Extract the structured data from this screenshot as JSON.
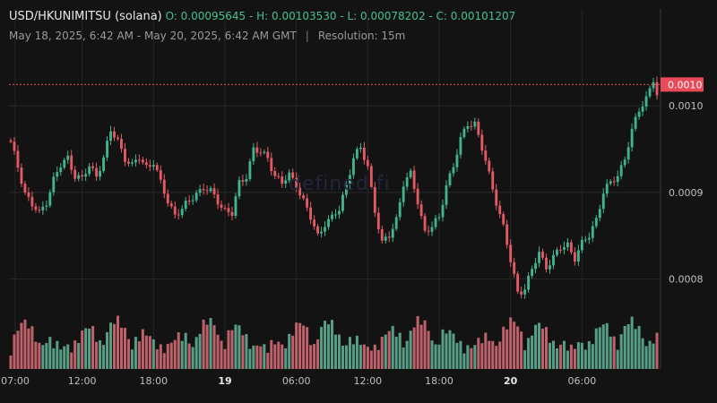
{
  "header": {
    "symbol": "USD/HKUNIMITSU (solana)",
    "ohlc": "O: 0.00095645 - H: 0.00103530 - L: 0.00078202 - C: 0.00101207",
    "range": "May 18, 2025, 6:42 AM - May 20, 2025, 6:42 AM GMT",
    "separator": "|",
    "resolution": "Resolution: 15m"
  },
  "watermark": "defined.fi",
  "colors": {
    "up": "#3fb48f",
    "down": "#e45a64",
    "background": "#131313",
    "price_tag": "#e84a57"
  },
  "chart_data": {
    "type": "candlestick",
    "interval": "15m",
    "ylim": [
      0.00075,
      0.00106
    ],
    "yticks": [
      "0.0008",
      "0.0009",
      "0.0010"
    ],
    "xticks": [
      "07:00",
      "12:00",
      "18:00",
      "19",
      "06:00",
      "12:00",
      "18:00",
      "20",
      "06:00"
    ],
    "current_price_label": "0.0010",
    "current_price": 0.00101207,
    "anchors": [
      [
        0,
        0.00095645
      ],
      [
        2,
        0.00093
      ],
      [
        4,
        0.0009
      ],
      [
        6,
        0.000885
      ],
      [
        8,
        0.000875
      ],
      [
        10,
        0.00089
      ],
      [
        12,
        0.000915
      ],
      [
        14,
        0.00093
      ],
      [
        16,
        0.00094
      ],
      [
        18,
        0.00092
      ],
      [
        20,
        0.000915
      ],
      [
        22,
        0.00093
      ],
      [
        24,
        0.00092
      ],
      [
        26,
        0.00094
      ],
      [
        28,
        0.00097
      ],
      [
        30,
        0.00096
      ],
      [
        32,
        0.00094
      ],
      [
        34,
        0.00093
      ],
      [
        36,
        0.00094
      ],
      [
        38,
        0.00093
      ],
      [
        40,
        0.000935
      ],
      [
        42,
        0.00091
      ],
      [
        44,
        0.00089
      ],
      [
        46,
        0.000875
      ],
      [
        48,
        0.00088
      ],
      [
        50,
        0.00089
      ],
      [
        52,
        0.0009
      ],
      [
        54,
        0.000905
      ],
      [
        56,
        0.0009
      ],
      [
        58,
        0.00089
      ],
      [
        60,
        0.00088
      ],
      [
        62,
        0.000875
      ],
      [
        64,
        0.00091
      ],
      [
        66,
        0.00092
      ],
      [
        68,
        0.00095
      ],
      [
        70,
        0.000945
      ],
      [
        72,
        0.00094
      ],
      [
        74,
        0.00092
      ],
      [
        76,
        0.00091
      ],
      [
        78,
        0.00092
      ],
      [
        80,
        0.00091
      ],
      [
        82,
        0.00089
      ],
      [
        84,
        0.00087
      ],
      [
        86,
        0.00085
      ],
      [
        88,
        0.000865
      ],
      [
        90,
        0.00087
      ],
      [
        92,
        0.00088
      ],
      [
        94,
        0.00091
      ],
      [
        96,
        0.00094
      ],
      [
        98,
        0.00095
      ],
      [
        100,
        0.00093
      ],
      [
        102,
        0.00088
      ],
      [
        104,
        0.00084
      ],
      [
        106,
        0.00085
      ],
      [
        108,
        0.00087
      ],
      [
        110,
        0.00091
      ],
      [
        112,
        0.00092
      ],
      [
        114,
        0.00089
      ],
      [
        116,
        0.000855
      ],
      [
        118,
        0.00086
      ],
      [
        120,
        0.00087
      ],
      [
        122,
        0.00091
      ],
      [
        124,
        0.00093
      ],
      [
        126,
        0.00096
      ],
      [
        128,
        0.00098
      ],
      [
        130,
        0.00098
      ],
      [
        132,
        0.00095
      ],
      [
        134,
        0.00092
      ],
      [
        136,
        0.00089
      ],
      [
        138,
        0.00086
      ],
      [
        140,
        0.00082
      ],
      [
        142,
        0.000785
      ],
      [
        144,
        0.00079
      ],
      [
        146,
        0.00081
      ],
      [
        148,
        0.00083
      ],
      [
        150,
        0.000815
      ],
      [
        152,
        0.000825
      ],
      [
        154,
        0.000835
      ],
      [
        156,
        0.00084
      ],
      [
        158,
        0.000825
      ],
      [
        160,
        0.00084
      ],
      [
        162,
        0.00085
      ],
      [
        164,
        0.00087
      ],
      [
        166,
        0.0009
      ],
      [
        168,
        0.00091
      ],
      [
        170,
        0.00092
      ],
      [
        172,
        0.00094
      ],
      [
        174,
        0.00097
      ],
      [
        176,
        0.000995
      ],
      [
        178,
        0.00101
      ],
      [
        180,
        0.00103
      ],
      [
        181,
        0.00101207
      ]
    ]
  }
}
